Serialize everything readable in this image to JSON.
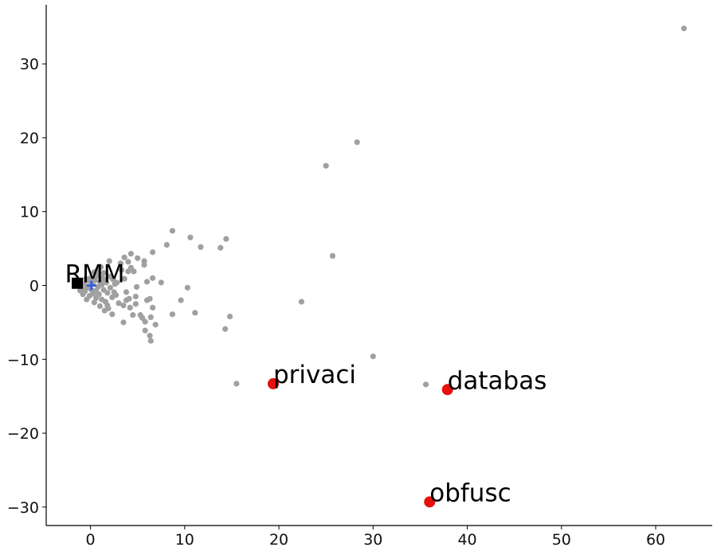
{
  "chart_data": {
    "type": "scatter",
    "title": "",
    "xlabel": "",
    "ylabel": "",
    "xlim": [
      -4.7,
      66
    ],
    "ylim": [
      -32.5,
      38
    ],
    "x_ticks": [
      0,
      10,
      20,
      30,
      40,
      50,
      60
    ],
    "y_ticks": [
      -30,
      -20,
      -10,
      0,
      10,
      20,
      30
    ],
    "x_tick_labels": [
      "0",
      "10",
      "20",
      "30",
      "40",
      "50",
      "60"
    ],
    "y_tick_labels": [
      "−30",
      "−20",
      "−10",
      "0",
      "10",
      "20",
      "30"
    ],
    "grid": false,
    "colors": {
      "background": "#a0a0a0",
      "highlight": "#e8100c",
      "reference": "#000000",
      "origin": "#3a5fd8"
    },
    "series": [
      {
        "role": "background",
        "points": [
          [
            63.0,
            34.8
          ],
          [
            28.3,
            19.4
          ],
          [
            25.0,
            16.2
          ],
          [
            25.7,
            4.0
          ],
          [
            22.4,
            -2.2
          ],
          [
            30.0,
            -9.6
          ],
          [
            35.6,
            -13.4
          ],
          [
            15.5,
            -13.3
          ],
          [
            14.4,
            6.3
          ],
          [
            13.8,
            5.1
          ],
          [
            14.8,
            -4.2
          ],
          [
            14.3,
            -5.9
          ],
          [
            11.7,
            5.2
          ],
          [
            10.6,
            6.5
          ],
          [
            11.1,
            -3.7
          ],
          [
            10.3,
            -0.3
          ],
          [
            9.6,
            -2.0
          ],
          [
            8.7,
            7.4
          ],
          [
            8.7,
            -3.9
          ],
          [
            8.1,
            5.5
          ],
          [
            7.5,
            0.4
          ],
          [
            6.9,
            -5.3
          ],
          [
            6.6,
            4.5
          ],
          [
            6.6,
            1.0
          ],
          [
            6.6,
            -3.0
          ],
          [
            6.3,
            -1.8
          ],
          [
            6.4,
            -4.3
          ],
          [
            6.3,
            -6.8
          ],
          [
            6.4,
            -7.5
          ],
          [
            6.0,
            0.5
          ],
          [
            6.0,
            -2.0
          ],
          [
            5.8,
            -4.9
          ],
          [
            5.8,
            -6.1
          ],
          [
            5.5,
            -4.4
          ],
          [
            5.7,
            2.8
          ],
          [
            5.7,
            3.3
          ],
          [
            5.3,
            -4.0
          ],
          [
            5.0,
            3.7
          ],
          [
            4.9,
            -0.2
          ],
          [
            4.8,
            -2.5
          ],
          [
            4.8,
            -1.5
          ],
          [
            4.6,
            1.9
          ],
          [
            4.5,
            -4.0
          ],
          [
            4.3,
            4.3
          ],
          [
            4.3,
            2.4
          ],
          [
            4.2,
            -3.0
          ],
          [
            4.1,
            -1.8
          ],
          [
            4.0,
            3.2
          ],
          [
            4.0,
            1.9
          ],
          [
            3.8,
            -0.9
          ],
          [
            3.8,
            -2.0
          ],
          [
            3.6,
            3.8
          ],
          [
            3.6,
            0.9
          ],
          [
            3.5,
            -2.7
          ],
          [
            3.5,
            -5.0
          ],
          [
            3.3,
            2.1
          ],
          [
            3.2,
            3.0
          ],
          [
            3.0,
            -2.4
          ],
          [
            2.8,
            0.4
          ],
          [
            2.6,
            0.2
          ],
          [
            2.5,
            -0.9
          ],
          [
            2.4,
            0.8
          ],
          [
            2.3,
            -1.6
          ],
          [
            2.3,
            -3.9
          ],
          [
            2.0,
            1.2
          ],
          [
            2.0,
            3.3
          ],
          [
            1.9,
            -3.1
          ],
          [
            1.8,
            -2.7
          ],
          [
            1.8,
            -1.0
          ],
          [
            1.7,
            0.4
          ],
          [
            1.6,
            -2.2
          ],
          [
            1.5,
            -3.4
          ],
          [
            1.4,
            1.7
          ],
          [
            1.4,
            -0.6
          ],
          [
            1.3,
            1.0
          ],
          [
            1.2,
            -1.9
          ],
          [
            1.1,
            2.5
          ],
          [
            1.0,
            0.5
          ],
          [
            1.0,
            -2.8
          ],
          [
            0.9,
            -1.2
          ],
          [
            0.8,
            2.2
          ],
          [
            0.8,
            -0.2
          ],
          [
            0.7,
            1.3
          ],
          [
            0.6,
            -1.7
          ],
          [
            0.6,
            -0.7
          ],
          [
            0.5,
            0.7
          ],
          [
            0.4,
            -2.3
          ],
          [
            0.4,
            1.8
          ],
          [
            0.3,
            -1.1
          ],
          [
            0.2,
            0.3
          ],
          [
            0.1,
            -0.6
          ],
          [
            0.0,
            1.0
          ],
          [
            -0.1,
            -1.4
          ],
          [
            -0.2,
            0.6
          ],
          [
            -0.3,
            -0.3
          ],
          [
            -0.4,
            -1.9
          ],
          [
            -0.5,
            0.9
          ],
          [
            -0.6,
            -0.8
          ],
          [
            -0.7,
            0.2
          ],
          [
            -0.8,
            -1.2
          ],
          [
            -0.9,
            -0.4
          ],
          [
            -1.0,
            0.4
          ],
          [
            -1.1,
            -0.7
          ],
          [
            1.2,
            0.1
          ],
          [
            2.1,
            -0.3
          ],
          [
            2.7,
            -1.3
          ],
          [
            1.6,
            0.6
          ],
          [
            0.9,
            1.6
          ]
        ]
      },
      {
        "role": "highlighted",
        "points": [
          {
            "label": "privaci",
            "x": 19.4,
            "y": -13.3
          },
          {
            "label": "databas",
            "x": 37.9,
            "y": -14.1
          },
          {
            "label": "obfusc",
            "x": 36.0,
            "y": -29.3
          }
        ]
      },
      {
        "role": "reference",
        "marker": "square",
        "points": [
          {
            "label": "RMM",
            "x": -1.4,
            "y": 0.3
          }
        ]
      },
      {
        "role": "origin",
        "marker": "cross",
        "points": [
          {
            "x": 0.1,
            "y": 0.0
          }
        ]
      }
    ]
  }
}
